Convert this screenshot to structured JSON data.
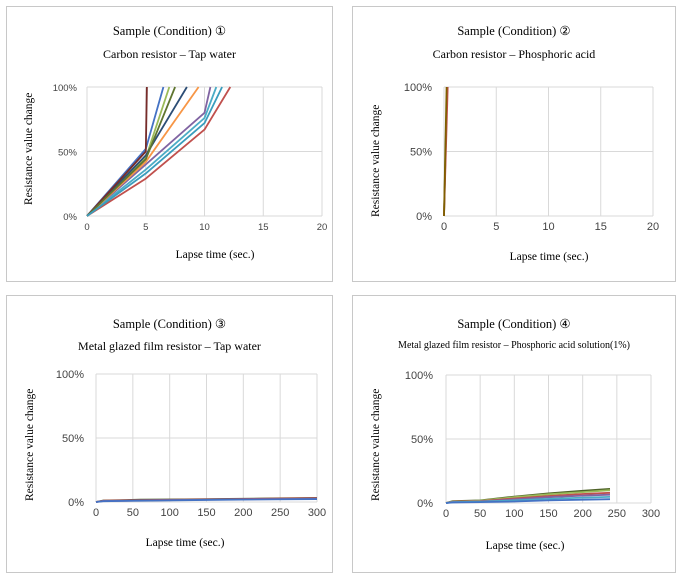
{
  "chart_data": [
    {
      "type": "line",
      "title": "Sample (Condition) ①",
      "subtitle": "Carbon resistor – Tap water",
      "xlabel": "Lapse time (sec.)",
      "ylabel": "Resistance value change",
      "xlim": [
        0,
        20
      ],
      "ylim": [
        0,
        100
      ],
      "xticks": [
        "0",
        "5",
        "10",
        "15",
        "20"
      ],
      "yticks": [
        "0%",
        "50%",
        "100%"
      ],
      "grid": true,
      "series": [
        {
          "color": "#4472c4",
          "points": [
            [
              0,
              0
            ],
            [
              5,
              52
            ],
            [
              6.5,
              100
            ]
          ]
        },
        {
          "color": "#c0504d",
          "points": [
            [
              0,
              0
            ],
            [
              5,
              29
            ],
            [
              10,
              67
            ],
            [
              12.2,
              100
            ]
          ]
        },
        {
          "color": "#9bbb59",
          "points": [
            [
              0,
              0
            ],
            [
              5,
              45
            ],
            [
              7,
              100
            ]
          ]
        },
        {
          "color": "#8064a2",
          "points": [
            [
              0,
              0
            ],
            [
              5,
              40
            ],
            [
              10,
              80
            ],
            [
              10.5,
              100
            ]
          ]
        },
        {
          "color": "#4bacc6",
          "points": [
            [
              0,
              0
            ],
            [
              5,
              36
            ],
            [
              10,
              76
            ],
            [
              11,
              100
            ]
          ]
        },
        {
          "color": "#f79646",
          "points": [
            [
              0,
              0
            ],
            [
              5,
              42
            ],
            [
              9.5,
              100
            ]
          ]
        },
        {
          "color": "#2c4d75",
          "points": [
            [
              0,
              0
            ],
            [
              5,
              47
            ],
            [
              8.5,
              100
            ]
          ]
        },
        {
          "color": "#772c2a",
          "points": [
            [
              0,
              0
            ],
            [
              5,
              50
            ],
            [
              5.1,
              100
            ]
          ]
        },
        {
          "color": "#5f7530",
          "points": [
            [
              0,
              0
            ],
            [
              5,
              44
            ],
            [
              7.5,
              100
            ]
          ]
        },
        {
          "color": "#3a9dbd",
          "points": [
            [
              0,
              0
            ],
            [
              5,
              33
            ],
            [
              10,
              72
            ],
            [
              11.5,
              100
            ]
          ]
        }
      ]
    },
    {
      "type": "line",
      "title": "Sample (Condition) ②",
      "subtitle": "Carbon resistor – Phosphoric acid",
      "xlabel": "Lapse time (sec.)",
      "ylabel": "Resistance value change",
      "xlim": [
        0,
        20
      ],
      "ylim": [
        0,
        100
      ],
      "xticks": [
        "0",
        "5",
        "10",
        "15",
        "20"
      ],
      "yticks": [
        "0%",
        "50%",
        "100%"
      ],
      "grid": true,
      "series": [
        {
          "color": "#4f6228",
          "points": [
            [
              0,
              0
            ],
            [
              0.3,
              100
            ]
          ]
        },
        {
          "color": "#c0504d",
          "points": [
            [
              0,
              0
            ],
            [
              0.35,
              100
            ]
          ]
        },
        {
          "color": "#7f6000",
          "points": [
            [
              0,
              0
            ],
            [
              0.25,
              100
            ]
          ]
        }
      ]
    },
    {
      "type": "line",
      "title": "Sample (Condition) ③",
      "subtitle": "Metal glazed film resistor – Tap water",
      "xlabel": "Lapse time (sec.)",
      "ylabel": "Resistance value change",
      "xlim": [
        0,
        300
      ],
      "ylim": [
        0,
        100
      ],
      "xticks": [
        "0",
        "50",
        "100",
        "150",
        "200",
        "250",
        "300"
      ],
      "yticks": [
        "0%",
        "50%",
        "100%"
      ],
      "grid": true,
      "series": [
        {
          "color": "#4f6228",
          "points": [
            [
              0,
              0
            ],
            [
              10,
              1.2
            ],
            [
              60,
              1.8
            ],
            [
              120,
              2
            ],
            [
              180,
              2.4
            ],
            [
              240,
              2.8
            ],
            [
              300,
              3.2
            ]
          ]
        },
        {
          "color": "#c0504d",
          "points": [
            [
              0,
              0
            ],
            [
              10,
              1
            ],
            [
              60,
              1.5
            ],
            [
              120,
              1.8
            ],
            [
              180,
              2.2
            ],
            [
              240,
              2.6
            ],
            [
              300,
              3
            ]
          ]
        },
        {
          "color": "#8064a2",
          "points": [
            [
              0,
              0
            ],
            [
              10,
              0.8
            ],
            [
              60,
              1.2
            ],
            [
              120,
              1.6
            ],
            [
              180,
              2
            ],
            [
              240,
              2.3
            ],
            [
              300,
              2.6
            ]
          ]
        },
        {
          "color": "#4472c4",
          "points": [
            [
              0,
              0
            ],
            [
              10,
              0.6
            ],
            [
              60,
              1
            ],
            [
              120,
              1.4
            ],
            [
              180,
              1.8
            ],
            [
              240,
              2
            ],
            [
              300,
              2.3
            ]
          ]
        }
      ]
    },
    {
      "type": "line",
      "title": "Sample (Condition) ④",
      "subtitle": "Metal glazed film resistor – Phosphoric acid solution(1%)",
      "xlabel": "Lapse time (sec.)",
      "ylabel": "Resistance value change",
      "xlim": [
        0,
        300
      ],
      "ylim": [
        0,
        100
      ],
      "xticks": [
        "0",
        "50",
        "100",
        "150",
        "200",
        "250",
        "300"
      ],
      "yticks": [
        "0%",
        "50%",
        "100%"
      ],
      "grid": true,
      "series": [
        {
          "color": "#4f6228",
          "points": [
            [
              0,
              0
            ],
            [
              10,
              1.5
            ],
            [
              50,
              2
            ],
            [
              100,
              5
            ],
            [
              150,
              7.5
            ],
            [
              200,
              9.5
            ],
            [
              240,
              11
            ]
          ]
        },
        {
          "color": "#9bbb59",
          "points": [
            [
              0,
              0
            ],
            [
              10,
              1.2
            ],
            [
              50,
              1.8
            ],
            [
              100,
              4.5
            ],
            [
              150,
              6.8
            ],
            [
              200,
              8.5
            ],
            [
              240,
              10
            ]
          ]
        },
        {
          "color": "#c0504d",
          "points": [
            [
              0,
              0
            ],
            [
              10,
              1
            ],
            [
              50,
              1.5
            ],
            [
              100,
              3.5
            ],
            [
              150,
              5.5
            ],
            [
              200,
              7
            ],
            [
              240,
              8
            ]
          ]
        },
        {
          "color": "#8064a2",
          "points": [
            [
              0,
              0
            ],
            [
              10,
              0.8
            ],
            [
              50,
              1.2
            ],
            [
              100,
              2.8
            ],
            [
              150,
              4.5
            ],
            [
              200,
              5.8
            ],
            [
              240,
              6.5
            ]
          ]
        },
        {
          "color": "#4bacc6",
          "points": [
            [
              0,
              0
            ],
            [
              10,
              0.6
            ],
            [
              50,
              1
            ],
            [
              100,
              2
            ],
            [
              150,
              3.2
            ],
            [
              200,
              4.2
            ],
            [
              240,
              4.8
            ]
          ]
        },
        {
          "color": "#4472c4",
          "points": [
            [
              0,
              0
            ],
            [
              10,
              0.4
            ],
            [
              50,
              0.7
            ],
            [
              100,
              1.2
            ],
            [
              150,
              2
            ],
            [
              200,
              2.6
            ],
            [
              240,
              3
            ]
          ]
        }
      ]
    }
  ]
}
